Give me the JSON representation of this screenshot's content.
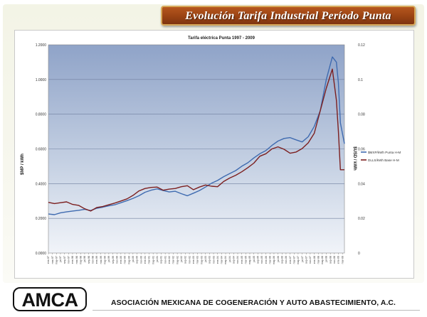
{
  "slide": {
    "title": "Evolución Tarifa Industrial Período Punta",
    "logo_text": "AMCA",
    "org_name": "ASOCIACIÓN MEXICANA DE COGENERACIÓN Y AUTO ABASTECIMIENTO, A.C."
  },
  "chart_data": {
    "type": "line",
    "title": "Tarifa eléctrica  Punta 1997 - 2009",
    "ylabel_left": "$MP / kWh",
    "ylabel_right": "$USD / kWh",
    "left_ticks": [
      "0.0000",
      "0.2000",
      "0.4000",
      "0.6000",
      "0.8000",
      "1.0000",
      "1.2000"
    ],
    "right_ticks": [
      "0",
      "0.02",
      "0.04",
      "0.06",
      "0.08",
      "0.1",
      "0.12"
    ],
    "ylim_left": [
      0,
      1.2
    ],
    "ylim_right": [
      0,
      0.12
    ],
    "x_start": "1997-01",
    "x_end": "2009-04",
    "grid": true,
    "legend_position": "right",
    "series": [
      {
        "name": "$MXP/kWh Punta H-M",
        "axis": "left",
        "color": "#3f6bb0",
        "points": [
          [
            "1997-01",
            0.225
          ],
          [
            "1997-04",
            0.221
          ],
          [
            "1997-07",
            0.232
          ],
          [
            "1997-10",
            0.237
          ],
          [
            "1998-01",
            0.242
          ],
          [
            "1998-04",
            0.246
          ],
          [
            "1998-07",
            0.252
          ],
          [
            "1998-10",
            0.245
          ],
          [
            "1999-01",
            0.258
          ],
          [
            "1999-04",
            0.264
          ],
          [
            "1999-07",
            0.272
          ],
          [
            "1999-10",
            0.278
          ],
          [
            "2000-01",
            0.29
          ],
          [
            "2000-04",
            0.302
          ],
          [
            "2000-07",
            0.315
          ],
          [
            "2000-10",
            0.33
          ],
          [
            "2001-01",
            0.35
          ],
          [
            "2001-04",
            0.362
          ],
          [
            "2001-07",
            0.37
          ],
          [
            "2001-10",
            0.36
          ],
          [
            "2002-01",
            0.352
          ],
          [
            "2002-04",
            0.356
          ],
          [
            "2002-07",
            0.342
          ],
          [
            "2002-10",
            0.33
          ],
          [
            "2003-01",
            0.345
          ],
          [
            "2003-04",
            0.36
          ],
          [
            "2003-07",
            0.38
          ],
          [
            "2003-10",
            0.402
          ],
          [
            "2004-01",
            0.418
          ],
          [
            "2004-04",
            0.44
          ],
          [
            "2004-07",
            0.458
          ],
          [
            "2004-10",
            0.475
          ],
          [
            "2005-01",
            0.5
          ],
          [
            "2005-04",
            0.52
          ],
          [
            "2005-07",
            0.548
          ],
          [
            "2005-10",
            0.572
          ],
          [
            "2006-01",
            0.59
          ],
          [
            "2006-04",
            0.62
          ],
          [
            "2006-07",
            0.645
          ],
          [
            "2006-10",
            0.66
          ],
          [
            "2007-01",
            0.665
          ],
          [
            "2007-04",
            0.652
          ],
          [
            "2007-07",
            0.64
          ],
          [
            "2007-10",
            0.67
          ],
          [
            "2008-01",
            0.73
          ],
          [
            "2008-04",
            0.82
          ],
          [
            "2008-07",
            1.0
          ],
          [
            "2008-10",
            1.13
          ],
          [
            "2008-12",
            1.1
          ],
          [
            "2009-01",
            0.98
          ],
          [
            "2009-02",
            0.75
          ],
          [
            "2009-04",
            0.63
          ]
        ]
      },
      {
        "name": "DLLS/kWh Base H-M",
        "axis": "right",
        "color": "#7c1f1f",
        "points": [
          [
            "1997-01",
            0.0292
          ],
          [
            "1997-04",
            0.0285
          ],
          [
            "1997-07",
            0.029
          ],
          [
            "1997-10",
            0.0295
          ],
          [
            "1998-01",
            0.028
          ],
          [
            "1998-04",
            0.0275
          ],
          [
            "1998-07",
            0.0255
          ],
          [
            "1998-10",
            0.0242
          ],
          [
            "1999-01",
            0.0262
          ],
          [
            "1999-04",
            0.0268
          ],
          [
            "1999-07",
            0.0278
          ],
          [
            "1999-10",
            0.0288
          ],
          [
            "2000-01",
            0.03
          ],
          [
            "2000-04",
            0.0312
          ],
          [
            "2000-07",
            0.0332
          ],
          [
            "2000-10",
            0.0358
          ],
          [
            "2001-01",
            0.0372
          ],
          [
            "2001-04",
            0.0378
          ],
          [
            "2001-07",
            0.038
          ],
          [
            "2001-10",
            0.0362
          ],
          [
            "2002-01",
            0.0368
          ],
          [
            "2002-04",
            0.0372
          ],
          [
            "2002-07",
            0.0382
          ],
          [
            "2002-10",
            0.0388
          ],
          [
            "2003-01",
            0.0365
          ],
          [
            "2003-04",
            0.038
          ],
          [
            "2003-07",
            0.0392
          ],
          [
            "2003-10",
            0.0385
          ],
          [
            "2004-01",
            0.0382
          ],
          [
            "2004-04",
            0.0412
          ],
          [
            "2004-07",
            0.0432
          ],
          [
            "2004-10",
            0.0448
          ],
          [
            "2005-01",
            0.0468
          ],
          [
            "2005-04",
            0.0492
          ],
          [
            "2005-07",
            0.0518
          ],
          [
            "2005-10",
            0.0558
          ],
          [
            "2006-01",
            0.0572
          ],
          [
            "2006-04",
            0.06
          ],
          [
            "2006-07",
            0.0612
          ],
          [
            "2006-10",
            0.0598
          ],
          [
            "2007-01",
            0.0575
          ],
          [
            "2007-04",
            0.0582
          ],
          [
            "2007-07",
            0.0602
          ],
          [
            "2007-10",
            0.0635
          ],
          [
            "2008-01",
            0.069
          ],
          [
            "2008-04",
            0.082
          ],
          [
            "2008-07",
            0.095
          ],
          [
            "2008-10",
            0.106
          ],
          [
            "2008-12",
            0.088
          ],
          [
            "2009-01",
            0.07
          ],
          [
            "2009-02",
            0.048
          ],
          [
            "2009-04",
            0.048
          ]
        ]
      }
    ]
  }
}
